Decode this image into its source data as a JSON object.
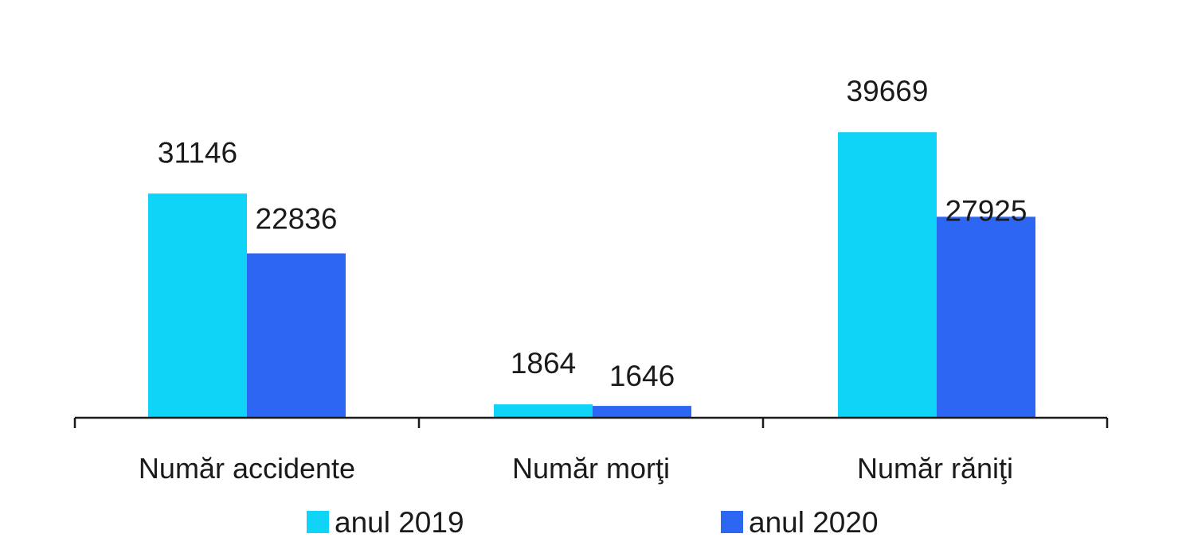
{
  "colors": {
    "series_2019": "#0fd3f7",
    "series_2020": "#2c66f2",
    "axis": "#1a1a1a",
    "text": "#1a1a1a"
  },
  "chart_data": {
    "type": "bar",
    "categories": [
      "Număr accidente",
      "Număr morţi",
      "Număr răniţi"
    ],
    "series": [
      {
        "name": "anul 2019",
        "values": [
          31146,
          1864,
          39669
        ]
      },
      {
        "name": "anul 2020",
        "values": [
          22836,
          1646,
          27925
        ]
      }
    ],
    "value_labels": [
      [
        "31146",
        "1864",
        "39669"
      ],
      [
        "22836",
        "1646",
        "27925"
      ]
    ],
    "ylim": [
      0,
      44000
    ],
    "grid": false,
    "legend_position": "bottom"
  }
}
